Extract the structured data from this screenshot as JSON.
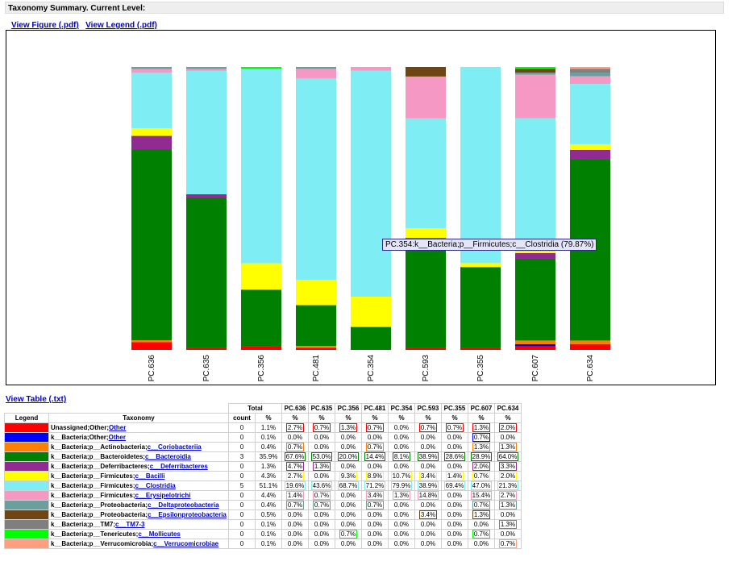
{
  "header": {
    "title": "Taxonomy Summary. Current Level:"
  },
  "links": {
    "view_figure": "View Figure (.pdf)",
    "view_legend": "View Legend (.pdf)",
    "view_table": "View Table (.txt)"
  },
  "tooltip": "PC.354:k__Bacteria;p__Firmicutes;c__Clostridia (79.87%)",
  "table": {
    "group_headers": {
      "legend": "Legend",
      "taxonomy": "Taxonomy",
      "total": "Total",
      "count": "count",
      "pct": "%"
    }
  },
  "chart_data": {
    "type": "bar",
    "stacked": true,
    "categories": [
      "PC.636",
      "PC.635",
      "PC.356",
      "PC.481",
      "PC.354",
      "PC.593",
      "PC.355",
      "PC.607",
      "PC.634"
    ],
    "ylim": [
      0,
      100
    ],
    "series": [
      {
        "name": "Unassigned;Other;Other",
        "prefix": "Unassigned;Other;",
        "link": "Other",
        "color": "#ff0000",
        "count": "0",
        "total": "1.1%",
        "values": [
          2.7,
          0.7,
          1.3,
          0.7,
          0.0,
          0.7,
          0.7,
          1.3,
          2.0
        ],
        "labels": [
          "2.7%",
          "0.7%",
          "1.3%",
          "0.7%",
          "0.0%",
          "0.7%",
          "0.7%",
          "1.3%",
          "2.0%"
        ]
      },
      {
        "name": "k__Bacteria;Other;Other",
        "prefix": "k__Bacteria;Other;",
        "link": "Other",
        "color": "#0000ff",
        "count": "0",
        "total": "0.1%",
        "values": [
          0.0,
          0.0,
          0.0,
          0.0,
          0.0,
          0.0,
          0.0,
          0.7,
          0.0
        ],
        "labels": [
          "0.0%",
          "0.0%",
          "0.0%",
          "0.0%",
          "0.0%",
          "0.0%",
          "0.0%",
          "0.7%",
          "0.0%"
        ]
      },
      {
        "name": "k__Bacteria;p__Actinobacteria;c__Coriobacteriia",
        "prefix": "k__Bacteria;p__Actinobacteria;",
        "link": "c__Coriobacteriia",
        "color": "#ff7f00",
        "count": "0",
        "total": "0.4%",
        "values": [
          0.7,
          0.0,
          0.0,
          0.7,
          0.0,
          0.0,
          0.0,
          1.3,
          1.3
        ],
        "labels": [
          "0.7%",
          "0.0%",
          "0.0%",
          "0.7%",
          "0.0%",
          "0.0%",
          "0.0%",
          "1.3%",
          "1.3%"
        ]
      },
      {
        "name": "k__Bacteria;p__Bacteroidetes;c__Bacteroidia",
        "prefix": "k__Bacteria;p__Bacteroidetes;",
        "link": "c__Bacteroidia",
        "color": "#008000",
        "count": "3",
        "total": "35.9%",
        "values": [
          67.6,
          53.0,
          20.0,
          14.4,
          8.1,
          38.9,
          28.6,
          28.9,
          64.0
        ],
        "labels": [
          "67.6%",
          "53.0%",
          "20.0%",
          "14.4%",
          "8.1%",
          "38.9%",
          "28.6%",
          "28.9%",
          "64.0%"
        ]
      },
      {
        "name": "k__Bacteria;p__Deferribacteres;c__Deferribacteres",
        "prefix": "k__Bacteria;p__Deferribacteres;",
        "link": "c__Deferribacteres",
        "color": "#912a91",
        "count": "0",
        "total": "1.3%",
        "values": [
          4.7,
          1.3,
          0.0,
          0.0,
          0.0,
          0.0,
          0.0,
          2.0,
          3.3
        ],
        "labels": [
          "4.7%",
          "1.3%",
          "0.0%",
          "0.0%",
          "0.0%",
          "0.0%",
          "0.0%",
          "2.0%",
          "3.3%"
        ]
      },
      {
        "name": "k__Bacteria;p__Firmicutes;c__Bacilli",
        "prefix": "k__Bacteria;p__Firmicutes;",
        "link": "c__Bacilli",
        "color": "#ffff00",
        "count": "0",
        "total": "4.3%",
        "values": [
          2.7,
          0.0,
          9.3,
          8.9,
          10.7,
          3.4,
          1.4,
          0.7,
          2.0
        ],
        "labels": [
          "2.7%",
          "0.0%",
          "9.3%",
          "8.9%",
          "10.7%",
          "3.4%",
          "1.4%",
          "0.7%",
          "2.0%"
        ]
      },
      {
        "name": "k__Bacteria;p__Firmicutes;c__Clostridia",
        "prefix": "k__Bacteria;p__Firmicutes;",
        "link": "c__Clostridia",
        "color": "#7eeef4",
        "count": "5",
        "total": "51.1%",
        "values": [
          19.6,
          43.6,
          68.7,
          71.2,
          79.9,
          38.9,
          69.4,
          47.0,
          21.3
        ],
        "labels": [
          "19.6%",
          "43.6%",
          "68.7%",
          "71.2%",
          "79.9%",
          "38.9%",
          "69.4%",
          "47.0%",
          "21.3%"
        ]
      },
      {
        "name": "k__Bacteria;p__Firmicutes;c__Erysipelotrichi",
        "prefix": "k__Bacteria;p__Firmicutes;",
        "link": "c__Erysipelotrichi",
        "color": "#f598c3",
        "count": "0",
        "total": "4.4%",
        "values": [
          1.4,
          0.7,
          0.0,
          3.4,
          1.3,
          14.8,
          0.0,
          15.4,
          2.7
        ],
        "labels": [
          "1.4%",
          "0.7%",
          "0.0%",
          "3.4%",
          "1.3%",
          "14.8%",
          "0.0%",
          "15.4%",
          "2.7%"
        ]
      },
      {
        "name": "k__Bacteria;p__Proteobacteria;c__Deltaproteobacteria",
        "prefix": "k__Bacteria;p__Proteobacteria;",
        "link": "c__Deltaproteobacteria",
        "color": "#6b9f9e",
        "count": "0",
        "total": "0.4%",
        "values": [
          0.7,
          0.7,
          0.0,
          0.7,
          0.0,
          0.0,
          0.0,
          0.7,
          1.3
        ],
        "labels": [
          "0.7%",
          "0.7%",
          "0.0%",
          "0.7%",
          "0.0%",
          "0.0%",
          "0.0%",
          "0.7%",
          "1.3%"
        ]
      },
      {
        "name": "k__Bacteria;p__Proteobacteria;c__Epsilonproteobacteria",
        "prefix": "k__Bacteria;p__Proteobacteria;",
        "link": "c__Epsilonproteobacteria",
        "color": "#6e4513",
        "count": "0",
        "total": "0.5%",
        "values": [
          0.0,
          0.0,
          0.0,
          0.0,
          0.0,
          3.4,
          0.0,
          1.3,
          0.0
        ],
        "labels": [
          "0.0%",
          "0.0%",
          "0.0%",
          "0.0%",
          "0.0%",
          "3.4%",
          "0.0%",
          "1.3%",
          "0.0%"
        ]
      },
      {
        "name": "k__Bacteria;p__TM7;c__TM7-3",
        "prefix": "k__Bacteria;p__TM7;",
        "link": "c__TM7-3",
        "color": "#7f7f7f",
        "count": "0",
        "total": "0.1%",
        "values": [
          0.0,
          0.0,
          0.0,
          0.0,
          0.0,
          0.0,
          0.0,
          0.0,
          1.3
        ],
        "labels": [
          "0.0%",
          "0.0%",
          "0.0%",
          "0.0%",
          "0.0%",
          "0.0%",
          "0.0%",
          "0.0%",
          "1.3%"
        ]
      },
      {
        "name": "k__Bacteria;p__Tenericutes;c__Mollicutes",
        "prefix": "k__Bacteria;p__Tenericutes;",
        "link": "c__Mollicutes",
        "color": "#00ff00",
        "count": "0",
        "total": "0.1%",
        "values": [
          0.0,
          0.0,
          0.7,
          0.0,
          0.0,
          0.0,
          0.0,
          0.7,
          0.0
        ],
        "labels": [
          "0.0%",
          "0.0%",
          "0.7%",
          "0.0%",
          "0.0%",
          "0.0%",
          "0.0%",
          "0.7%",
          "0.0%"
        ]
      },
      {
        "name": "k__Bacteria;p__Verrucomicrobia;c__Verrucomicrobiae",
        "prefix": "k__Bacteria;p__Verrucomicrobia;",
        "link": "c__Verrucomicrobiae",
        "color": "#ff9f7f",
        "count": "0",
        "total": "0.1%",
        "values": [
          0.0,
          0.0,
          0.0,
          0.0,
          0.0,
          0.0,
          0.0,
          0.0,
          0.7
        ],
        "labels": [
          "0.0%",
          "0.0%",
          "0.0%",
          "0.0%",
          "0.0%",
          "0.0%",
          "0.0%",
          "0.0%",
          "0.7%"
        ]
      }
    ]
  }
}
